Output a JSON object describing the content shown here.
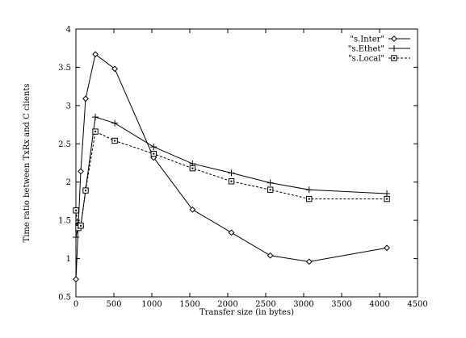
{
  "chart_data": {
    "type": "line",
    "title": "",
    "xlabel": "Transfer size (in bytes)",
    "ylabel": "Time ratio between TxRx and C clients",
    "xlim": [
      0,
      4500
    ],
    "ylim": [
      0.5,
      4
    ],
    "xticks": [
      0,
      500,
      1000,
      1500,
      2000,
      2500,
      3000,
      3500,
      4000,
      4500
    ],
    "yticks": [
      0.5,
      1,
      1.5,
      2,
      2.5,
      3,
      3.5,
      4
    ],
    "xtick_labels": [
      "0",
      "500",
      "1000",
      "1500",
      "2000",
      "2500",
      "3000",
      "3500",
      "4000",
      "4500"
    ],
    "ytick_labels": [
      "0.5",
      "1",
      "1.5",
      "2",
      "2.5",
      "3",
      "3.5",
      "4"
    ],
    "grid": false,
    "legend_position": "top-right",
    "series": [
      {
        "name": "\"s.Inter\"",
        "marker": "diamond",
        "line_style": "solid",
        "color": "#000000",
        "x": [
          1,
          32,
          64,
          128,
          256,
          512,
          1024,
          1536,
          2048,
          2560,
          3072,
          4096
        ],
        "y": [
          0.73,
          1.45,
          2.14,
          3.09,
          3.67,
          3.48,
          2.32,
          1.64,
          1.34,
          1.04,
          0.96,
          1.14
        ]
      },
      {
        "name": "\"s.Ethet\"",
        "marker": "plus",
        "line_style": "solid",
        "color": "#000000",
        "x": [
          1,
          32,
          64,
          128,
          256,
          512,
          1024,
          1536,
          2048,
          2560,
          3072,
          4096
        ],
        "y": [
          1.28,
          1.45,
          1.42,
          1.9,
          2.85,
          2.77,
          2.46,
          2.24,
          2.12,
          1.99,
          1.9,
          1.85
        ]
      },
      {
        "name": "\"s.Local\"",
        "marker": "square",
        "line_style": "dashed",
        "color": "#000000",
        "x": [
          1,
          32,
          64,
          128,
          256,
          512,
          1024,
          1536,
          2048,
          2560,
          3072,
          4096
        ],
        "y": [
          1.63,
          1.4,
          1.43,
          1.89,
          2.66,
          2.54,
          2.37,
          2.18,
          2.01,
          1.9,
          1.78,
          1.78
        ]
      }
    ]
  }
}
